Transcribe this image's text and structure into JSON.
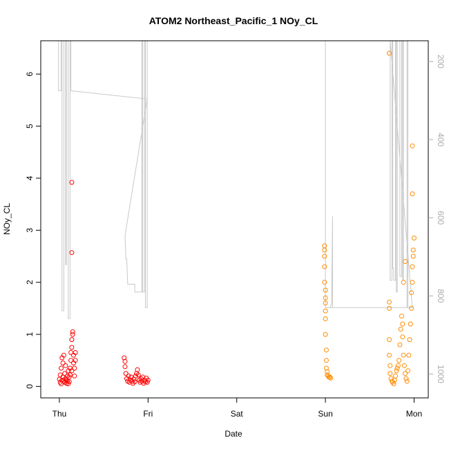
{
  "chart_data": {
    "type": "scatter",
    "title": "ATOM2 Northeast_Pacific_1 NOy_CL",
    "xlabel": "Date",
    "ylabel": "NOy_CL",
    "x_tick_labels": [
      "Thu",
      "Fri",
      "Sat",
      "Sun",
      "Mon"
    ],
    "x_tick_days": [
      0,
      1,
      2,
      3,
      4
    ],
    "xlim_days": [
      -0.21,
      4.16
    ],
    "ylim": [
      -0.22,
      6.64
    ],
    "y_ticks": [
      0,
      1,
      2,
      3,
      4,
      5,
      6
    ],
    "right_axis": {
      "ticks": [
        200,
        400,
        600,
        800,
        1000
      ],
      "reversed": true,
      "lim": [
        147,
        1061
      ],
      "color": "#aaaaaa"
    },
    "grid": false,
    "legend": "none",
    "colors": {
      "series1": "#ff0000",
      "series2": "#ff8c00",
      "altitude": "#c8c8c8"
    },
    "series": [
      {
        "color": "#ff0000",
        "marker": "open-circle",
        "points": [
          [
            0.0,
            0.14
          ],
          [
            0.01,
            0.08
          ],
          [
            0.01,
            0.22
          ],
          [
            0.02,
            0.35
          ],
          [
            0.02,
            0.05
          ],
          [
            0.03,
            0.55
          ],
          [
            0.03,
            0.12
          ],
          [
            0.04,
            0.45
          ],
          [
            0.04,
            0.18
          ],
          [
            0.05,
            0.1
          ],
          [
            0.05,
            0.6
          ],
          [
            0.06,
            0.25
          ],
          [
            0.06,
            0.08
          ],
          [
            0.07,
            0.15
          ],
          [
            0.07,
            0.4
          ],
          [
            0.08,
            0.12
          ],
          [
            0.08,
            0.06
          ],
          [
            0.09,
            0.2
          ],
          [
            0.09,
            0.1
          ],
          [
            0.1,
            0.3
          ],
          [
            0.1,
            0.05
          ],
          [
            0.11,
            0.18
          ],
          [
            0.11,
            0.09
          ],
          [
            0.12,
            0.35
          ],
          [
            0.12,
            0.22
          ],
          [
            0.13,
            0.5
          ],
          [
            0.13,
            0.65
          ],
          [
            0.14,
            0.75
          ],
          [
            0.14,
            0.3
          ],
          [
            0.14,
            0.9
          ],
          [
            0.15,
            1.0
          ],
          [
            0.15,
            1.05
          ],
          [
            0.14,
            3.92
          ],
          [
            0.14,
            2.57
          ],
          [
            0.16,
            0.6
          ],
          [
            0.16,
            0.45
          ],
          [
            0.17,
            0.35
          ],
          [
            0.17,
            0.2
          ],
          [
            0.18,
            0.5
          ],
          [
            0.18,
            0.65
          ],
          [
            0.73,
            0.55
          ],
          [
            0.74,
            0.48
          ],
          [
            0.74,
            0.38
          ],
          [
            0.75,
            0.25
          ],
          [
            0.76,
            0.15
          ],
          [
            0.77,
            0.1
          ],
          [
            0.78,
            0.2
          ],
          [
            0.79,
            0.08
          ],
          [
            0.8,
            0.12
          ],
          [
            0.81,
            0.18
          ],
          [
            0.82,
            0.1
          ],
          [
            0.83,
            0.06
          ],
          [
            0.84,
            0.14
          ],
          [
            0.85,
            0.09
          ],
          [
            0.86,
            0.2
          ],
          [
            0.87,
            0.25
          ],
          [
            0.88,
            0.32
          ],
          [
            0.89,
            0.22
          ],
          [
            0.9,
            0.12
          ],
          [
            0.91,
            0.08
          ],
          [
            0.92,
            0.15
          ],
          [
            0.93,
            0.1
          ],
          [
            0.94,
            0.18
          ],
          [
            0.95,
            0.06
          ],
          [
            0.96,
            0.12
          ],
          [
            0.97,
            0.09
          ],
          [
            0.98,
            0.16
          ],
          [
            0.99,
            0.08
          ],
          [
            1.0,
            0.12
          ]
        ]
      },
      {
        "color": "#ff8c00",
        "marker": "open-circle",
        "points": [
          [
            2.99,
            2.7
          ],
          [
            2.99,
            2.62
          ],
          [
            2.99,
            2.5
          ],
          [
            2.99,
            2.3
          ],
          [
            2.99,
            2.0
          ],
          [
            3.0,
            1.85
          ],
          [
            3.0,
            1.7
          ],
          [
            3.0,
            1.6
          ],
          [
            3.0,
            1.45
          ],
          [
            3.0,
            1.3
          ],
          [
            3.0,
            1.0
          ],
          [
            3.01,
            0.7
          ],
          [
            3.01,
            0.5
          ],
          [
            3.01,
            0.35
          ],
          [
            3.02,
            0.28
          ],
          [
            3.02,
            0.22
          ],
          [
            3.03,
            0.2
          ],
          [
            3.04,
            0.18
          ],
          [
            3.05,
            0.18
          ],
          [
            3.06,
            0.16
          ],
          [
            3.72,
            6.4
          ],
          [
            3.72,
            1.62
          ],
          [
            3.72,
            1.5
          ],
          [
            3.72,
            0.9
          ],
          [
            3.72,
            0.6
          ],
          [
            3.73,
            0.4
          ],
          [
            3.73,
            0.25
          ],
          [
            3.74,
            0.15
          ],
          [
            3.75,
            0.1
          ],
          [
            3.76,
            0.08
          ],
          [
            3.77,
            0.05
          ],
          [
            3.78,
            0.12
          ],
          [
            3.79,
            0.2
          ],
          [
            3.8,
            0.3
          ],
          [
            3.81,
            0.35
          ],
          [
            3.82,
            0.4
          ],
          [
            3.83,
            0.5
          ],
          [
            3.84,
            0.8
          ],
          [
            3.85,
            1.1
          ],
          [
            3.86,
            1.35
          ],
          [
            3.87,
            1.2
          ],
          [
            3.87,
            0.95
          ],
          [
            3.88,
            0.6
          ],
          [
            3.89,
            0.4
          ],
          [
            3.9,
            0.25
          ],
          [
            3.91,
            0.15
          ],
          [
            3.92,
            0.1
          ],
          [
            3.93,
            0.3
          ],
          [
            3.94,
            0.6
          ],
          [
            3.95,
            0.9
          ],
          [
            3.96,
            1.2
          ],
          [
            3.97,
            1.5
          ],
          [
            3.97,
            1.8
          ],
          [
            3.98,
            2.0
          ],
          [
            3.98,
            2.3
          ],
          [
            3.99,
            2.5
          ],
          [
            3.99,
            2.62
          ],
          [
            4.0,
            2.85
          ],
          [
            3.98,
            3.7
          ],
          [
            3.98,
            4.62
          ],
          [
            3.9,
            2.4
          ],
          [
            3.88,
            2.0
          ]
        ]
      }
    ],
    "altitude_line": {
      "color": "#c8c8c8",
      "points": [
        [
          -0.01,
          147
        ],
        [
          -0.01,
          275
        ],
        [
          0.02,
          275
        ],
        [
          0.02,
          147
        ],
        [
          0.03,
          147
        ],
        [
          0.03,
          838
        ],
        [
          0.05,
          838
        ],
        [
          0.05,
          147
        ],
        [
          0.07,
          147
        ],
        [
          0.07,
          720
        ],
        [
          0.08,
          720
        ],
        [
          0.08,
          147
        ],
        [
          0.1,
          147
        ],
        [
          0.1,
          858
        ],
        [
          0.12,
          858
        ],
        [
          0.12,
          147
        ],
        [
          0.13,
          147
        ],
        [
          0.13,
          275
        ],
        [
          0.99,
          296
        ],
        [
          0.74,
          645
        ],
        [
          0.75,
          705
        ],
        [
          0.76,
          705
        ],
        [
          0.77,
          770
        ],
        [
          0.85,
          770
        ],
        [
          0.85,
          790
        ],
        [
          0.93,
          790
        ],
        [
          0.93,
          147
        ],
        [
          0.94,
          147
        ],
        [
          0.94,
          790
        ],
        [
          0.96,
          790
        ],
        [
          0.96,
          147
        ],
        [
          0.97,
          147
        ],
        [
          0.97,
          830
        ],
        [
          0.99,
          830
        ],
        [
          0.99,
          147
        ],
        [
          1.0,
          147
        ],
        [
          3.0,
          147
        ],
        [
          3.0,
          830
        ],
        [
          3.08,
          830
        ],
        [
          3.08,
          596
        ],
        [
          3.07,
          820
        ],
        [
          3.05,
          830
        ],
        [
          3.05,
          830
        ],
        [
          3.98,
          830
        ],
        [
          3.73,
          147
        ],
        [
          3.73,
          760
        ],
        [
          3.75,
          760
        ],
        [
          3.75,
          147
        ],
        [
          3.76,
          147
        ],
        [
          3.76,
          730
        ],
        [
          3.77,
          730
        ],
        [
          3.77,
          760
        ],
        [
          3.79,
          760
        ],
        [
          3.79,
          147
        ],
        [
          3.8,
          147
        ],
        [
          3.8,
          790
        ],
        [
          3.81,
          790
        ],
        [
          3.81,
          147
        ],
        [
          3.84,
          147
        ],
        [
          3.84,
          750
        ],
        [
          3.86,
          750
        ],
        [
          3.86,
          147
        ],
        [
          3.87,
          147
        ],
        [
          3.87,
          760
        ],
        [
          3.88,
          760
        ],
        [
          3.88,
          147
        ],
        [
          3.92,
          147
        ],
        [
          3.92,
          830
        ],
        [
          3.93,
          830
        ],
        [
          3.93,
          147
        ],
        [
          3.96,
          147
        ]
      ]
    }
  }
}
